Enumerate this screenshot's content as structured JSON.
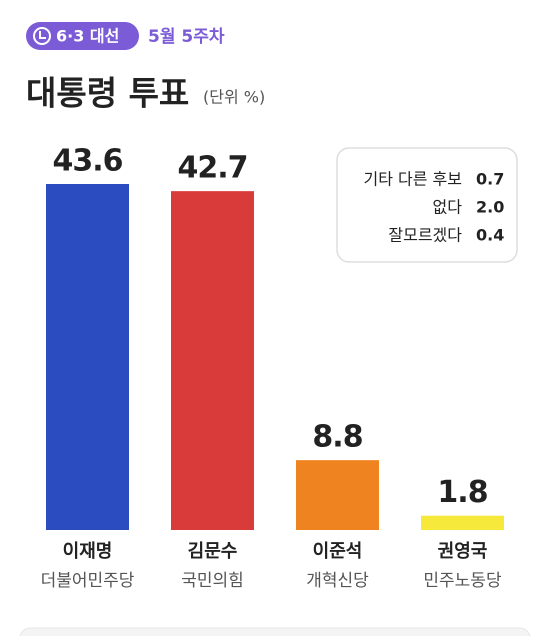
{
  "chart_data": {
    "type": "bar",
    "badge": "6·3 대선",
    "subtitle": "5월 5주차",
    "title": "대통령 투표",
    "unit": "(단위 %)",
    "categories": [
      "이재명",
      "김문수",
      "이준석",
      "권영국"
    ],
    "parties": [
      "더불어민주당",
      "국민의힘",
      "개혁신당",
      "민주노동당"
    ],
    "values": [
      43.6,
      42.7,
      8.8,
      1.8
    ],
    "colors": [
      "#2b4cc1",
      "#d93b3b",
      "#ef8320",
      "#f7e93b"
    ],
    "others": {
      "categories": [
        "기타 다른 후보",
        "없다",
        "잘모르겠다"
      ],
      "values": [
        0.7,
        2.0,
        0.4
      ],
      "value_labels": [
        "0.7",
        "2.0",
        "0.4"
      ]
    }
  }
}
